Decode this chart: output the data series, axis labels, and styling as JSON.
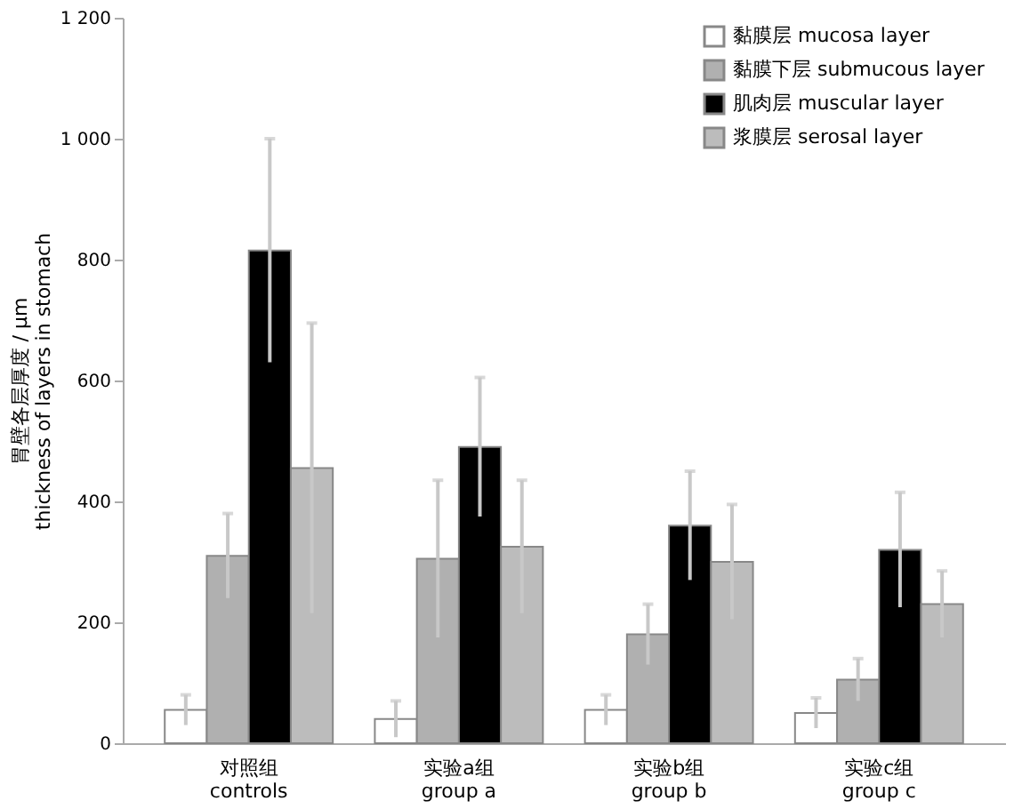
{
  "chart_data": {
    "type": "bar",
    "ylabel": "胃壁各层厚度 / μm\nthickness of layers in stomach",
    "categories": [
      "对照组\ncontrols",
      "实验a组\ngroup a",
      "实验b组\ngroup b",
      "实验c组\ngroup c"
    ],
    "series": [
      {
        "name": "黏膜层   mucosa layer",
        "color": "#ffffff",
        "values": [
          55,
          40,
          55,
          50
        ],
        "errors": [
          25,
          30,
          25,
          25
        ]
      },
      {
        "name": "黏膜下层   submucous layer",
        "color": "#b0b0b0",
        "values": [
          310,
          305,
          180,
          105
        ],
        "errors": [
          70,
          130,
          50,
          35
        ]
      },
      {
        "name": "肌肉层   muscular layer",
        "color": "#000000",
        "values": [
          815,
          490,
          360,
          320
        ],
        "errors": [
          185,
          115,
          90,
          95
        ]
      },
      {
        "name": "浆膜层   serosal layer",
        "color": "#bcbcbc",
        "values": [
          455,
          325,
          300,
          230
        ],
        "errors": [
          240,
          110,
          95,
          55
        ]
      }
    ],
    "ylim": [
      0,
      1200
    ],
    "yticks": [
      0,
      200,
      400,
      600,
      800,
      {
        "value": 1000,
        "label": "1 000"
      },
      {
        "value": 1200,
        "label": "1 200"
      }
    ],
    "grid": false,
    "legend": "top right"
  }
}
